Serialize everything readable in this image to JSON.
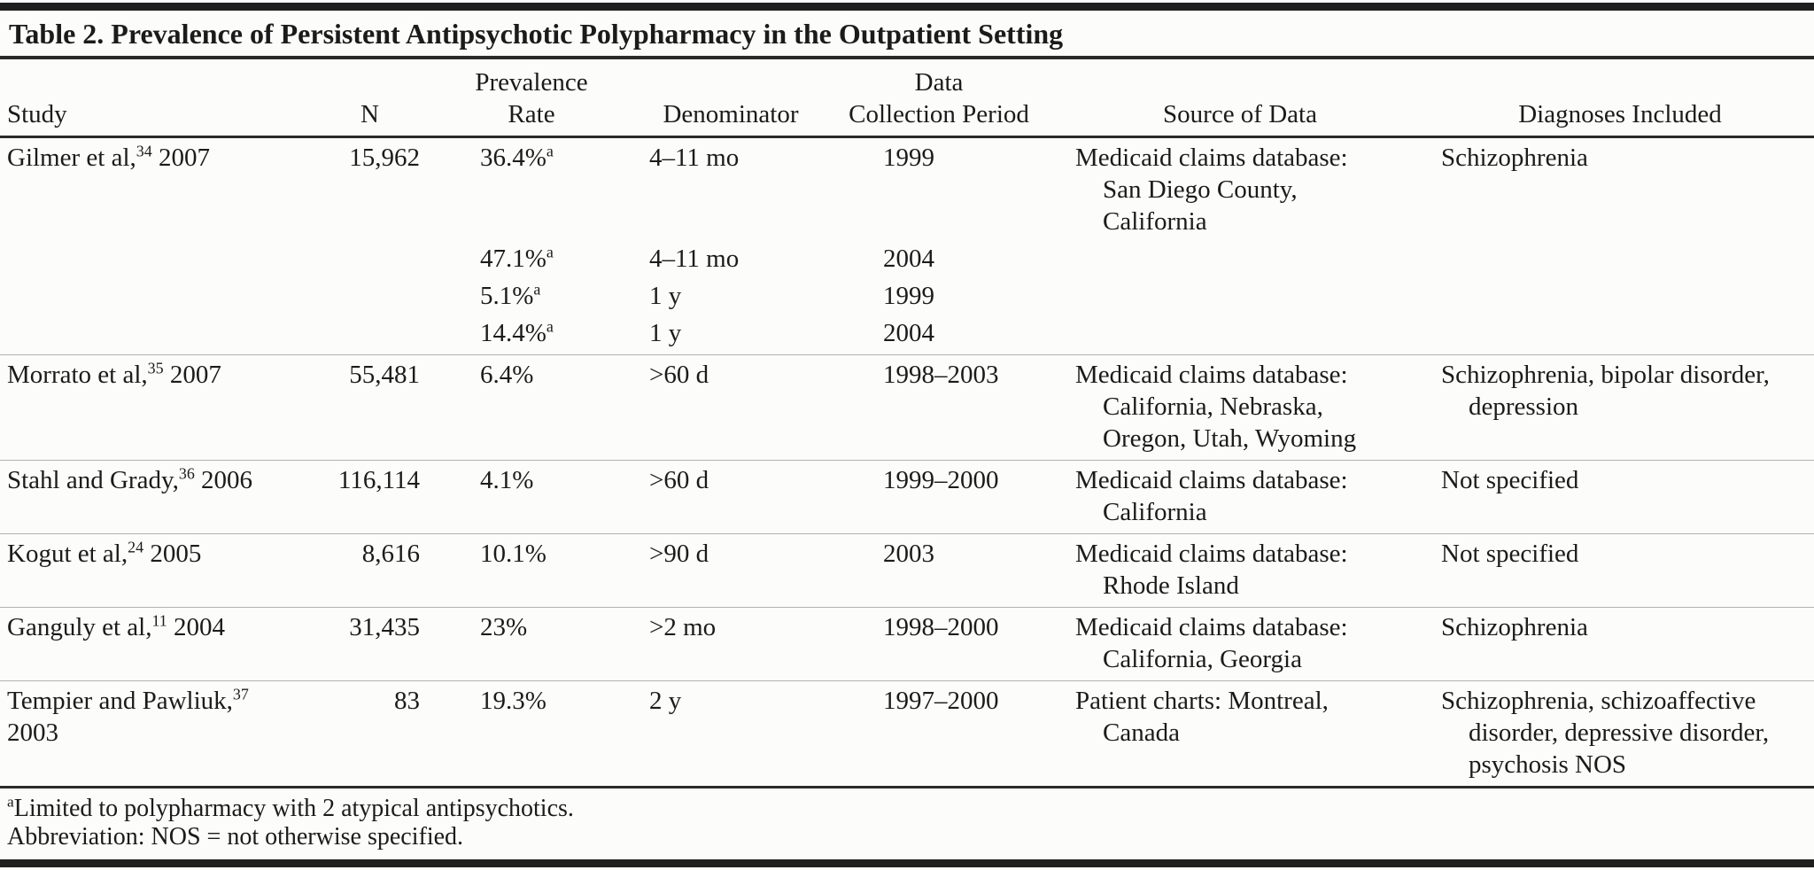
{
  "title": "Table 2. Prevalence of Persistent Antipsychotic Polypharmacy in the Outpatient Setting",
  "header": {
    "study": "Study",
    "n": "N",
    "prevalence": [
      "Prevalence",
      "Rate"
    ],
    "denominator": "Denominator",
    "period": [
      "Data",
      "Collection Period"
    ],
    "source": "Source of Data",
    "diagnoses": "Diagnoses Included"
  },
  "groups": [
    {
      "study": "Gilmer et al,",
      "ref": "34",
      "year": " 2007",
      "n": "15,962",
      "entries": [
        {
          "rate": "36.4%",
          "sup": "a",
          "denominator": "4–11 mo",
          "period": "1999"
        },
        {
          "rate": "47.1%",
          "sup": "a",
          "denominator": "4–11 mo",
          "period": "2004"
        },
        {
          "rate": "5.1%",
          "sup": "a",
          "denominator": "1 y",
          "period": "1999"
        },
        {
          "rate": "14.4%",
          "sup": "a",
          "denominator": "1 y",
          "period": "2004"
        }
      ],
      "source": [
        "Medicaid claims database:",
        "San Diego County,",
        "California"
      ],
      "diagnoses": [
        "Schizophrenia"
      ]
    },
    {
      "study": "Morrato et al,",
      "ref": "35",
      "year": " 2007",
      "n": "55,481",
      "entries": [
        {
          "rate": "6.4%",
          "denominator": ">60 d",
          "period": "1998–2003"
        }
      ],
      "source": [
        "Medicaid claims database:",
        "California, Nebraska,",
        "Oregon, Utah, Wyoming"
      ],
      "diagnoses": [
        "Schizophrenia, bipolar disorder,",
        "depression"
      ]
    },
    {
      "study": "Stahl and Grady,",
      "ref": "36",
      "year": " 2006",
      "n": "116,114",
      "entries": [
        {
          "rate": "4.1%",
          "denominator": ">60 d",
          "period": "1999–2000"
        }
      ],
      "source": [
        "Medicaid claims database:",
        "California"
      ],
      "diagnoses": [
        "Not specified"
      ]
    },
    {
      "study": "Kogut et al,",
      "ref": "24",
      "year": " 2005",
      "n": "8,616",
      "entries": [
        {
          "rate": "10.1%",
          "denominator": ">90 d",
          "period": "2003"
        }
      ],
      "source": [
        "Medicaid claims database:",
        "Rhode Island"
      ],
      "diagnoses": [
        "Not specified"
      ]
    },
    {
      "study": "Ganguly et al,",
      "ref": "11",
      "year": " 2004",
      "n": "31,435",
      "entries": [
        {
          "rate": "23%",
          "denominator": ">2 mo",
          "period": "1998–2000"
        }
      ],
      "source": [
        "Medicaid claims database:",
        "California, Georgia"
      ],
      "diagnoses": [
        "Schizophrenia"
      ]
    },
    {
      "study": "Tempier and Pawliuk,",
      "ref": "37",
      "year": "",
      "study_line2": "2003",
      "n": "83",
      "entries": [
        {
          "rate": "19.3%",
          "denominator": "2 y",
          "period": "1997–2000"
        }
      ],
      "source": [
        "Patient charts: Montreal,",
        "Canada"
      ],
      "diagnoses": [
        "Schizophrenia, schizoaffective",
        "disorder, depressive disorder,",
        "psychosis NOS"
      ]
    }
  ],
  "footnotes": {
    "marker": "a",
    "limited": "Limited to polypharmacy with 2 atypical antipsychotics.",
    "abbreviation": "Abbreviation: NOS = not otherwise specified."
  },
  "colors": {
    "rule_dark": "#2a2a2a",
    "rule_light": "#b3b3b3",
    "bar": "#1f1f1f",
    "text": "#1b1b1b",
    "bg": "#fcfcfa"
  }
}
